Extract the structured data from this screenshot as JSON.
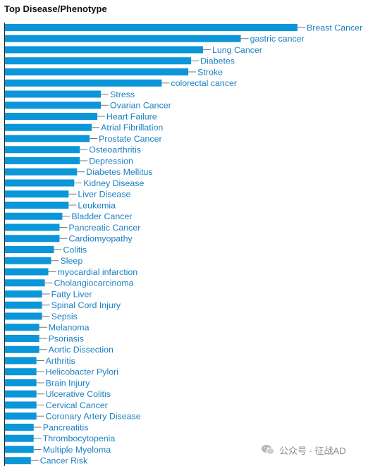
{
  "chart_data": {
    "type": "bar",
    "orientation": "horizontal",
    "title": "Top Disease/Phenotype",
    "xlabel": "",
    "ylabel": "",
    "grid": false,
    "categories": [
      "Breast Cancer",
      "gastric cancer",
      "Lung Cancer",
      "Diabetes",
      "Stroke",
      "colorectal cancer",
      "Stress",
      "Ovarian Cancer",
      "Heart Failure",
      "Atrial Fibrillation",
      "Prostate Cancer",
      "Osteoarthritis",
      "Depression",
      "Diabetes Mellitus",
      "Kidney Disease",
      "Liver Disease",
      "Leukemia",
      "Bladder Cancer",
      "Pancreatic Cancer",
      "Cardiomyopathy",
      "Colitis",
      "Sleep",
      "myocardial infarction",
      "Cholangiocarcinoma",
      "Fatty Liver",
      "Spinal Cord Injury",
      "Sepsis",
      "Melanoma",
      "Psoriasis",
      "Aortic Dissection",
      "Arthritis",
      "Helicobacter Pylori",
      "Brain Injury",
      "Ulcerative Colitis",
      "Cervical Cancer",
      "Coronary Artery Disease",
      "Pancreatitis",
      "Thrombocytopenia",
      "Multiple Myeloma",
      "Cancer Risk"
    ],
    "values": [
      418,
      337,
      283,
      266,
      262,
      224,
      137,
      137,
      132,
      124,
      121,
      107,
      107,
      103,
      99,
      91,
      91,
      82,
      78,
      78,
      70,
      66,
      62,
      57,
      53,
      53,
      53,
      49,
      49,
      49,
      45,
      45,
      45,
      45,
      45,
      45,
      41,
      41,
      41,
      37
    ],
    "bar_color": "#0a96d8",
    "label_color": "#1a7fc1"
  },
  "watermark": {
    "text": "公众号 · 征战AD",
    "icon": "wechat-icon"
  }
}
